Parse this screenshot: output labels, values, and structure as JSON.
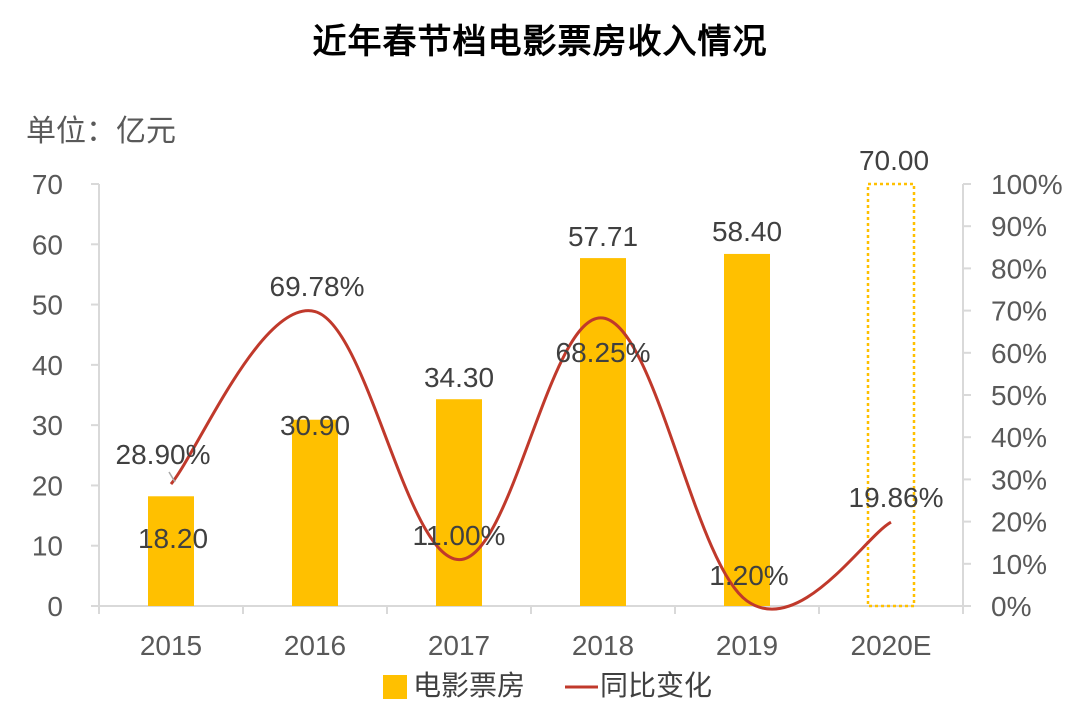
{
  "chart_data": {
    "type": "bar",
    "title": "近年春节档电影票房收入情况",
    "unit_label": "单位：亿元",
    "categories": [
      "2015",
      "2016",
      "2017",
      "2018",
      "2019",
      "2020E"
    ],
    "series": [
      {
        "name": "电影票房",
        "type": "bar",
        "axis": "left",
        "values": [
          18.2,
          30.9,
          34.3,
          57.71,
          58.4,
          70.0
        ],
        "labels": [
          "18.20",
          "30.90",
          "34.30",
          "57.71",
          "58.40",
          "70.00"
        ],
        "estimated_flags": [
          false,
          false,
          false,
          false,
          false,
          true
        ],
        "color": "#FFC000"
      },
      {
        "name": "同比变化",
        "type": "line",
        "axis": "right",
        "values": [
          28.9,
          69.78,
          11.0,
          68.25,
          1.2,
          19.86
        ],
        "labels": [
          "28.90%",
          "69.78%",
          "11.00%",
          "68.25%",
          "1.20%",
          "19.86%"
        ],
        "color": "#C0392B"
      }
    ],
    "y_left": {
      "min": 0,
      "max": 70,
      "ticks": [
        "0",
        "10",
        "20",
        "30",
        "40",
        "50",
        "60",
        "70"
      ]
    },
    "y_right": {
      "min": 0,
      "max": 100,
      "ticks": [
        "0%",
        "10%",
        "20%",
        "30%",
        "40%",
        "50%",
        "60%",
        "70%",
        "80%",
        "90%",
        "100%"
      ]
    },
    "grid": false,
    "legend_position": "bottom"
  }
}
